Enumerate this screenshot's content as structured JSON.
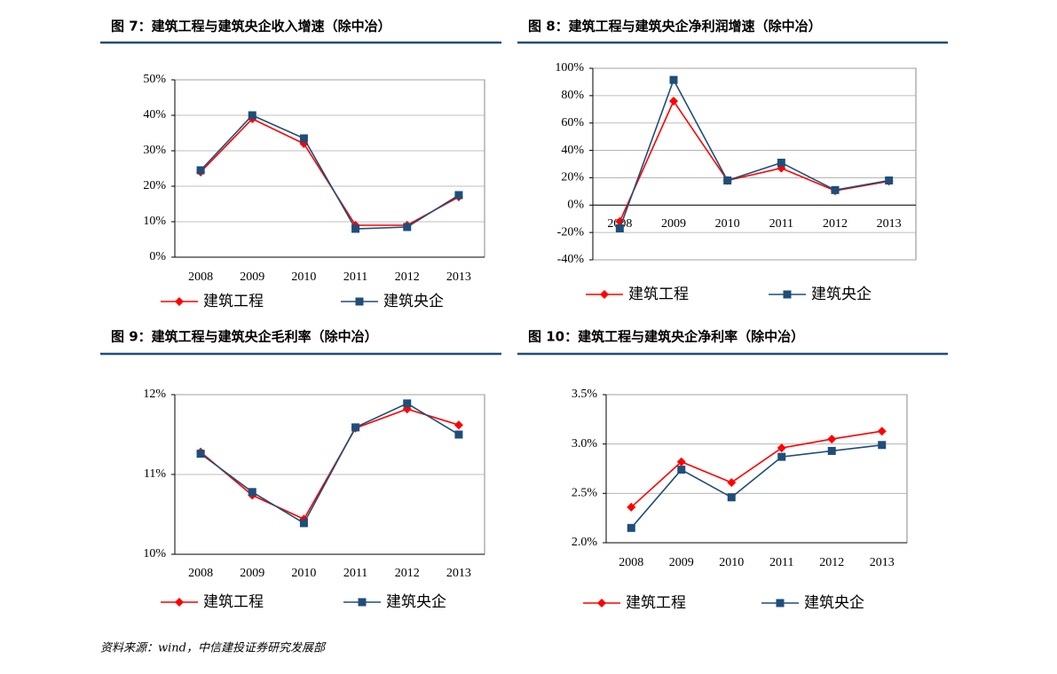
{
  "chart_data": [
    {
      "type": "line",
      "title": "图 7：建筑工程与建筑央企收入增速（除中冶）",
      "categories": [
        "2008",
        "2009",
        "2010",
        "2011",
        "2012",
        "2013"
      ],
      "series": [
        {
          "name": "建筑工程",
          "color": "#ff0000",
          "marker": "diamond",
          "values": [
            24,
            39,
            32,
            9,
            9,
            17
          ]
        },
        {
          "name": "建筑央企",
          "color": "#1f4e79",
          "marker": "square",
          "values": [
            24.5,
            40,
            33.5,
            8,
            8.5,
            17.5
          ]
        }
      ],
      "ylim": [
        0,
        50
      ],
      "yticks": [
        {
          "value": 0,
          "label": "0%"
        },
        {
          "value": 10,
          "label": "10%"
        },
        {
          "value": 20,
          "label": "20%"
        },
        {
          "value": 30,
          "label": "30%"
        },
        {
          "value": 40,
          "label": "40%"
        },
        {
          "value": 50,
          "label": "50%"
        }
      ],
      "grid": true
    },
    {
      "type": "line",
      "title": "图 8：建筑工程与建筑央企净利润增速（除中冶）",
      "categories": [
        "2008",
        "2009",
        "2010",
        "2011",
        "2012",
        "2013"
      ],
      "series": [
        {
          "name": "建筑工程",
          "color": "#ff0000",
          "marker": "diamond",
          "values": [
            -12,
            76,
            18,
            27,
            10.5,
            17.5
          ]
        },
        {
          "name": "建筑央企",
          "color": "#1f4e79",
          "marker": "square",
          "values": [
            -17,
            91.5,
            18,
            31,
            11,
            18
          ]
        }
      ],
      "ylim": [
        -40,
        100
      ],
      "yticks": [
        {
          "value": -40,
          "label": "-40%"
        },
        {
          "value": -20,
          "label": "-20%"
        },
        {
          "value": 0,
          "label": "0%"
        },
        {
          "value": 20,
          "label": "20%"
        },
        {
          "value": 40,
          "label": "40%"
        },
        {
          "value": 60,
          "label": "60%"
        },
        {
          "value": 80,
          "label": "80%"
        },
        {
          "value": 100,
          "label": "100%"
        }
      ],
      "grid": true
    },
    {
      "type": "line",
      "title": "图 9：建筑工程与建筑央企毛利率（除中冶）",
      "categories": [
        "2008",
        "2009",
        "2010",
        "2011",
        "2012",
        "2013"
      ],
      "series": [
        {
          "name": "建筑工程",
          "color": "#ff0000",
          "marker": "diamond",
          "values": [
            11.28,
            10.74,
            10.44,
            11.58,
            11.82,
            11.62
          ]
        },
        {
          "name": "建筑央企",
          "color": "#1f4e79",
          "marker": "square",
          "values": [
            11.26,
            10.78,
            10.39,
            11.59,
            11.89,
            11.5
          ]
        }
      ],
      "ylim": [
        10,
        12
      ],
      "yticks": [
        {
          "value": 10,
          "label": "10%"
        },
        {
          "value": 11,
          "label": "11%"
        },
        {
          "value": 12,
          "label": "12%"
        }
      ],
      "grid": true
    },
    {
      "type": "line",
      "title": "图 10：建筑工程与建筑央企净利率（除中冶）",
      "categories": [
        "2008",
        "2009",
        "2010",
        "2011",
        "2012",
        "2013"
      ],
      "series": [
        {
          "name": "建筑工程",
          "color": "#ff0000",
          "marker": "diamond",
          "values": [
            2.36,
            2.82,
            2.61,
            2.96,
            3.05,
            3.13
          ]
        },
        {
          "name": "建筑央企",
          "color": "#1f4e79",
          "marker": "square",
          "values": [
            2.15,
            2.74,
            2.46,
            2.87,
            2.93,
            2.99
          ]
        }
      ],
      "ylim": [
        2.0,
        3.5
      ],
      "yticks": [
        {
          "value": 2.0,
          "label": "2.0%"
        },
        {
          "value": 2.5,
          "label": "2.5%"
        },
        {
          "value": 3.0,
          "label": "3.0%"
        },
        {
          "value": 3.5,
          "label": "3.5%"
        }
      ],
      "grid": true
    }
  ],
  "source": "资料来源：wind，中信建投证券研究发展部"
}
